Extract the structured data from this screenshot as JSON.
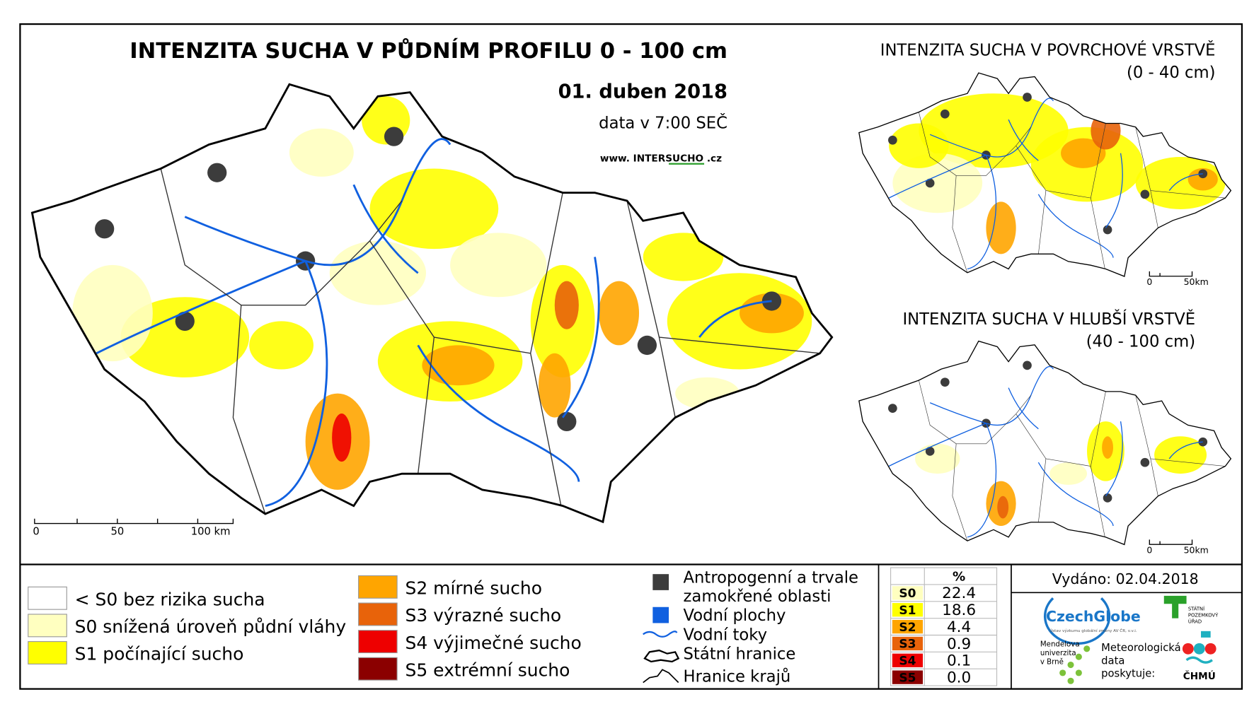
{
  "main_map": {
    "title": "INTENZITA SUCHA V PŮDNÍM PROFILU 0 - 100 cm",
    "date": "01. duben 2018",
    "time_note": "data v 7:00 SEČ",
    "website": "www. INTERSUCHO .cz",
    "scale_labels": [
      "0",
      "50",
      "100 km"
    ]
  },
  "inset_top": {
    "title": "INTENZITA SUCHA V POVRCHOVÉ VRSTVĚ",
    "subtitle": "(0 - 40 cm)",
    "scale_labels": [
      "0",
      "50km"
    ]
  },
  "inset_bottom": {
    "title": "INTENZITA SUCHA V HLUBŠÍ VRSTVĚ",
    "subtitle": "(40 - 100 cm)",
    "scale_labels": [
      "0",
      "50km"
    ]
  },
  "legend": {
    "drought_classes": [
      {
        "label": "< S0 bez rizika sucha",
        "color": "#ffffff"
      },
      {
        "label": "S0 snížená úroveň půdní vláhy",
        "color": "#ffffc0"
      },
      {
        "label": "S1 počínající sucho",
        "color": "#ffff00"
      },
      {
        "label": "S2 mírné sucho",
        "color": "#ffa500"
      },
      {
        "label": "S3 výrazné sucho",
        "color": "#e8630a"
      },
      {
        "label": "S4 výjimečné sucho",
        "color": "#ee0000"
      },
      {
        "label": "S5 extrémní sucho",
        "color": "#8b0000"
      }
    ],
    "other": [
      {
        "label": "Antropogenní a trvale zamokřené oblasti"
      },
      {
        "label": "Vodní plochy"
      },
      {
        "label": "Vodní toky"
      },
      {
        "label": "Státní hranice"
      },
      {
        "label": "Hranice krajů"
      }
    ]
  },
  "stats_table": {
    "header": "%",
    "rows": [
      {
        "class": "S0",
        "percent": "22.4"
      },
      {
        "class": "S1",
        "percent": "18.6"
      },
      {
        "class": "S2",
        "percent": "4.4"
      },
      {
        "class": "S3",
        "percent": "0.9"
      },
      {
        "class": "S4",
        "percent": "0.1"
      },
      {
        "class": "S5",
        "percent": "0.0"
      }
    ]
  },
  "issued": "Vydáno: 02.04.2018",
  "logos": {
    "czechglobe": "CzechGlobe",
    "czechglobe_sub": "Ústav výzkumu globální změny AV ČR, v.v.i.",
    "spu": "STÁTNÍ POZEMKOVÝ ÚŘAD",
    "mendelu": "Mendelova univerzita v Brně",
    "chmu_note": "Meteorologická data poskytuje:",
    "chmu": "ČHMÚ"
  }
}
